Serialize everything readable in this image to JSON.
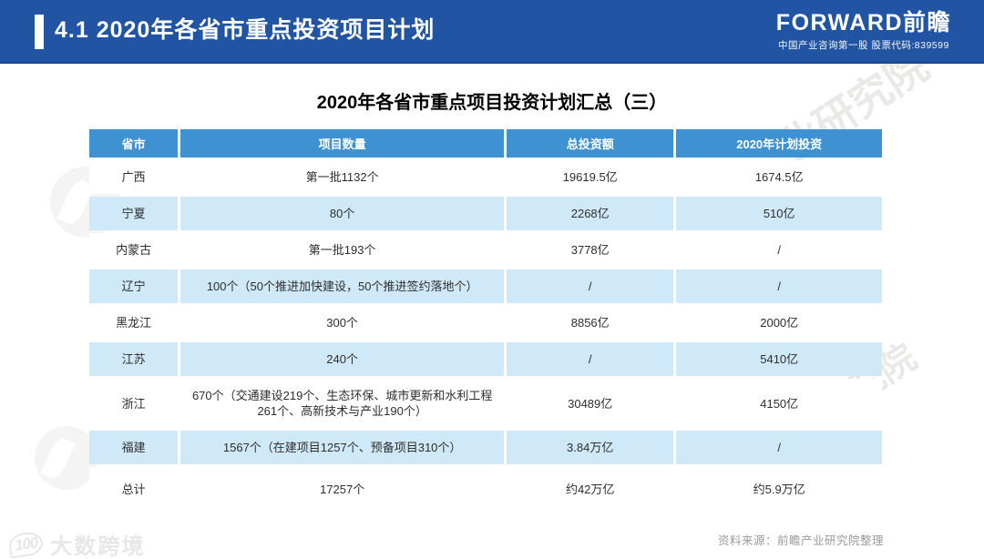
{
  "colors": {
    "top_bar_blue": "#2154a3",
    "top_bar_border": "#1b4a97",
    "table_header_blue": "#3f92d2",
    "row_alt_blue": "#cfe9f8",
    "body_text": "#2e2e2e",
    "source_gray": "#9a9a9a"
  },
  "top_bar": {
    "section_title": "4.1 2020年各省市重点投资项目计划",
    "brand": "FORWARD前瞻",
    "brand_tagline": "中国产业咨询第一股 股票代码:839599"
  },
  "main": {
    "title": "2020年各省市重点项目投资计划汇总（三）"
  },
  "table": {
    "columns": [
      "省市",
      "项目数量",
      "总投资额",
      "2020年计划投资"
    ],
    "rows": [
      [
        "广西",
        "第一批1132个",
        "19619.5亿",
        "1674.5亿"
      ],
      [
        "宁夏",
        "80个",
        "2268亿",
        "510亿"
      ],
      [
        "内蒙古",
        "第一批193个",
        "3778亿",
        "/"
      ],
      [
        "辽宁",
        "100个（50个推进加快建设，50个推进签约落地个）",
        "/",
        "/"
      ],
      [
        "黑龙江",
        "300个",
        "8856亿",
        "2000亿"
      ],
      [
        "江苏",
        "240个",
        "/",
        "5410亿"
      ],
      [
        "浙江",
        "670个（交通建设219个、生态环保、城市更新和水利工程261个、高新技术与产业190个）",
        "30489亿",
        "4150亿"
      ],
      [
        "福建",
        "1567个（在建项目1257个、预备项目310个）",
        "3.84万亿",
        "/"
      ],
      [
        "总计",
        "17257个",
        "约42万亿",
        "约5.9万亿"
      ]
    ]
  },
  "chart_data": {
    "type": "table",
    "title": "2020年各省市重点项目投资计划汇总（三）",
    "columns": [
      "省市",
      "项目数量",
      "总投资额",
      "2020年计划投资"
    ],
    "rows": [
      [
        "广西",
        "第一批1132个",
        "19619.5亿",
        "1674.5亿"
      ],
      [
        "宁夏",
        "80个",
        "2268亿",
        "510亿"
      ],
      [
        "内蒙古",
        "第一批193个",
        "3778亿",
        "/"
      ],
      [
        "辽宁",
        "100个（50个推进加快建设，50个推进签约落地个）",
        "/",
        "/"
      ],
      [
        "黑龙江",
        "300个",
        "8856亿",
        "2000亿"
      ],
      [
        "江苏",
        "240个",
        "/",
        "5410亿"
      ],
      [
        "浙江",
        "670个（交通建设219个、生态环保、城市更新和水利工程261个、高新技术与产业190个）",
        "30489亿",
        "4150亿"
      ],
      [
        "福建",
        "1567个（在建项目1257个、预备项目310个）",
        "3.84万亿",
        "/"
      ],
      [
        "总计",
        "17257个",
        "约42万亿",
        "约5.9万亿"
      ]
    ]
  },
  "footer": {
    "source": "资料来源：前瞻产业研究院整理"
  },
  "watermarks": {
    "bottom_left_logo_text": "100",
    "bottom_left_brand": "大数跨境",
    "diagonal_text_1": "业研究院",
    "diagonal_text_2": "究院"
  }
}
